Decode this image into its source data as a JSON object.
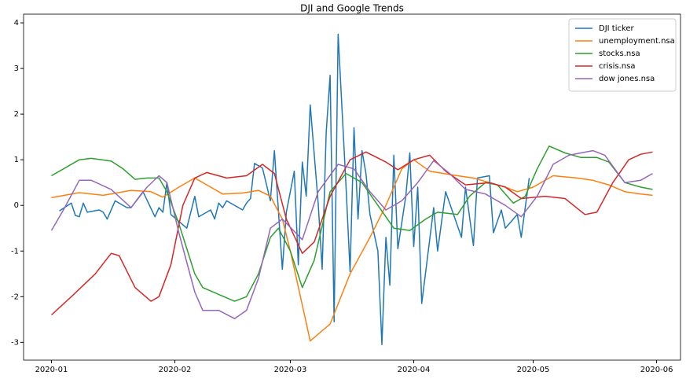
{
  "chart_data": {
    "type": "line",
    "title": "DJI and Google Trends",
    "xlim": [
      -7,
      158
    ],
    "ylim": [
      -3.39,
      4.19
    ],
    "xticks": [
      {
        "value": 0,
        "label": "2020-01"
      },
      {
        "value": 31,
        "label": "2020-02"
      },
      {
        "value": 60,
        "label": "2020-03"
      },
      {
        "value": 91,
        "label": "2020-04"
      },
      {
        "value": 121,
        "label": "2020-05"
      },
      {
        "value": 152,
        "label": "2020-06"
      }
    ],
    "yticks": [
      -3,
      -2,
      -1,
      0,
      1,
      2,
      3,
      4
    ],
    "legend": "upper right",
    "grid": false,
    "series": [
      {
        "name": "DJI ticker",
        "color": "#1f77b4",
        "x": [
          2,
          5,
          6,
          7,
          8,
          9,
          12,
          13,
          14,
          16,
          19,
          20,
          23,
          26,
          27,
          28,
          29,
          30,
          34,
          36,
          37,
          40,
          41,
          42,
          43,
          44,
          48,
          49,
          50,
          51,
          53,
          55,
          56,
          58,
          59,
          61,
          62,
          63,
          64,
          65,
          67,
          68,
          69,
          70,
          71,
          72,
          74,
          75,
          76,
          77,
          78,
          79,
          80,
          82,
          83,
          84,
          85,
          86,
          87,
          89,
          90,
          91,
          92,
          93,
          96,
          97,
          99,
          103,
          104,
          106,
          107,
          110,
          111,
          113,
          114,
          117,
          118,
          120
        ],
        "values": [
          -0.12,
          0.05,
          -0.22,
          -0.25,
          0.05,
          -0.15,
          -0.1,
          -0.15,
          -0.3,
          0.1,
          -0.05,
          -0.05,
          0.3,
          -0.25,
          -0.05,
          -0.15,
          0.5,
          -0.2,
          -0.5,
          0.2,
          -0.25,
          -0.1,
          -0.3,
          0.05,
          -0.05,
          0.1,
          -0.1,
          0.05,
          0.15,
          0.92,
          0.82,
          0.1,
          1.2,
          -1.4,
          -0.15,
          0.75,
          -1.3,
          0.95,
          0.2,
          2.2,
          0.05,
          -1.4,
          1.6,
          2.85,
          -2.55,
          3.75,
          0.4,
          -1.45,
          1.7,
          -0.3,
          1.2,
          0.7,
          -0.2,
          -1.0,
          -3.05,
          -0.7,
          -1.75,
          1.1,
          -0.95,
          0.2,
          1.15,
          -0.9,
          0.4,
          -2.15,
          -0.05,
          -1.0,
          0.3,
          -0.7,
          0.4,
          -0.88,
          0.6,
          0.65,
          -0.6,
          -0.1,
          -0.5,
          -0.2,
          -0.7,
          0.6
        ]
      },
      {
        "name": "unemployment.nsa",
        "color": "#ff7f0e",
        "x": [
          0,
          7,
          13,
          20,
          25,
          28,
          32,
          36,
          40,
          43,
          48,
          52,
          55,
          58,
          60,
          65,
          70,
          75,
          80,
          84,
          88,
          91,
          95,
          102,
          106,
          110,
          114,
          117,
          121,
          126,
          132,
          136,
          140,
          144,
          148,
          151
        ],
        "values": [
          0.17,
          0.28,
          0.22,
          0.33,
          0.3,
          0.18,
          0.4,
          0.6,
          0.4,
          0.25,
          0.27,
          0.33,
          0.2,
          -0.3,
          -1.0,
          -2.97,
          -2.6,
          -1.5,
          -0.7,
          0.0,
          0.8,
          1.0,
          0.75,
          0.65,
          0.6,
          0.5,
          0.4,
          0.3,
          0.4,
          0.65,
          0.6,
          0.55,
          0.45,
          0.3,
          0.25,
          0.22
        ]
      },
      {
        "name": "stocks.nsa",
        "color": "#2ca02c",
        "x": [
          0,
          7,
          10,
          15,
          18,
          21,
          24,
          27,
          29,
          32,
          36,
          38,
          42,
          46,
          49,
          52,
          55,
          57,
          60,
          63,
          66,
          70,
          74,
          78,
          82,
          86,
          90,
          94,
          97,
          102,
          105,
          109,
          112,
          116,
          119,
          122,
          125,
          129,
          133,
          137,
          140,
          144,
          148,
          151
        ],
        "values": [
          0.65,
          1.0,
          1.03,
          0.97,
          0.8,
          0.57,
          0.6,
          0.6,
          0.3,
          -0.4,
          -1.5,
          -1.8,
          -1.95,
          -2.1,
          -2.0,
          -1.5,
          -0.7,
          -0.5,
          -1.0,
          -1.8,
          -1.2,
          0.3,
          0.7,
          0.5,
          0.0,
          -0.5,
          -0.55,
          -0.3,
          -0.15,
          -0.2,
          0.2,
          0.5,
          0.45,
          0.05,
          0.2,
          0.8,
          1.3,
          1.15,
          1.05,
          1.05,
          0.95,
          0.5,
          0.4,
          0.35
        ]
      },
      {
        "name": "crisis.nsa",
        "color": "#d62728",
        "x": [
          0,
          5,
          8,
          11,
          15,
          17,
          21,
          25,
          27,
          30,
          33,
          36,
          39,
          44,
          49,
          53,
          56,
          59,
          63,
          66,
          70,
          75,
          79,
          84,
          87,
          91,
          95,
          99,
          104,
          110,
          114,
          118,
          124,
          129,
          134,
          137,
          141,
          145,
          148,
          151
        ],
        "values": [
          -2.4,
          -2.0,
          -1.75,
          -1.5,
          -1.05,
          -1.1,
          -1.8,
          -2.1,
          -2.0,
          -1.3,
          0.0,
          0.6,
          0.72,
          0.6,
          0.65,
          0.9,
          0.7,
          -0.3,
          -1.05,
          -0.8,
          0.2,
          1.0,
          1.17,
          0.95,
          0.78,
          1.0,
          1.1,
          0.75,
          0.45,
          0.5,
          0.4,
          0.15,
          0.2,
          0.15,
          -0.2,
          -0.15,
          0.5,
          1.0,
          1.12,
          1.17
        ]
      },
      {
        "name": "dow jones.nsa",
        "color": "#9467bd",
        "x": [
          0,
          3,
          7,
          10,
          15,
          20,
          24,
          27,
          29,
          32,
          36,
          38,
          42,
          46,
          49,
          52,
          55,
          58,
          63,
          67,
          72,
          76,
          80,
          84,
          88,
          92,
          96,
          100,
          104,
          109,
          114,
          118,
          122,
          126,
          130,
          136,
          139,
          144,
          148,
          151
        ],
        "values": [
          -0.55,
          -0.1,
          0.55,
          0.55,
          0.35,
          -0.05,
          0.4,
          0.65,
          0.5,
          -0.6,
          -1.9,
          -2.3,
          -2.3,
          -2.48,
          -2.3,
          -1.6,
          -0.5,
          -0.3,
          -0.75,
          0.3,
          0.9,
          0.8,
          0.3,
          -0.1,
          0.1,
          0.5,
          0.98,
          0.7,
          0.35,
          0.25,
          0.0,
          -0.25,
          0.2,
          0.9,
          1.1,
          1.2,
          1.1,
          0.5,
          0.55,
          0.7
        ]
      }
    ]
  }
}
